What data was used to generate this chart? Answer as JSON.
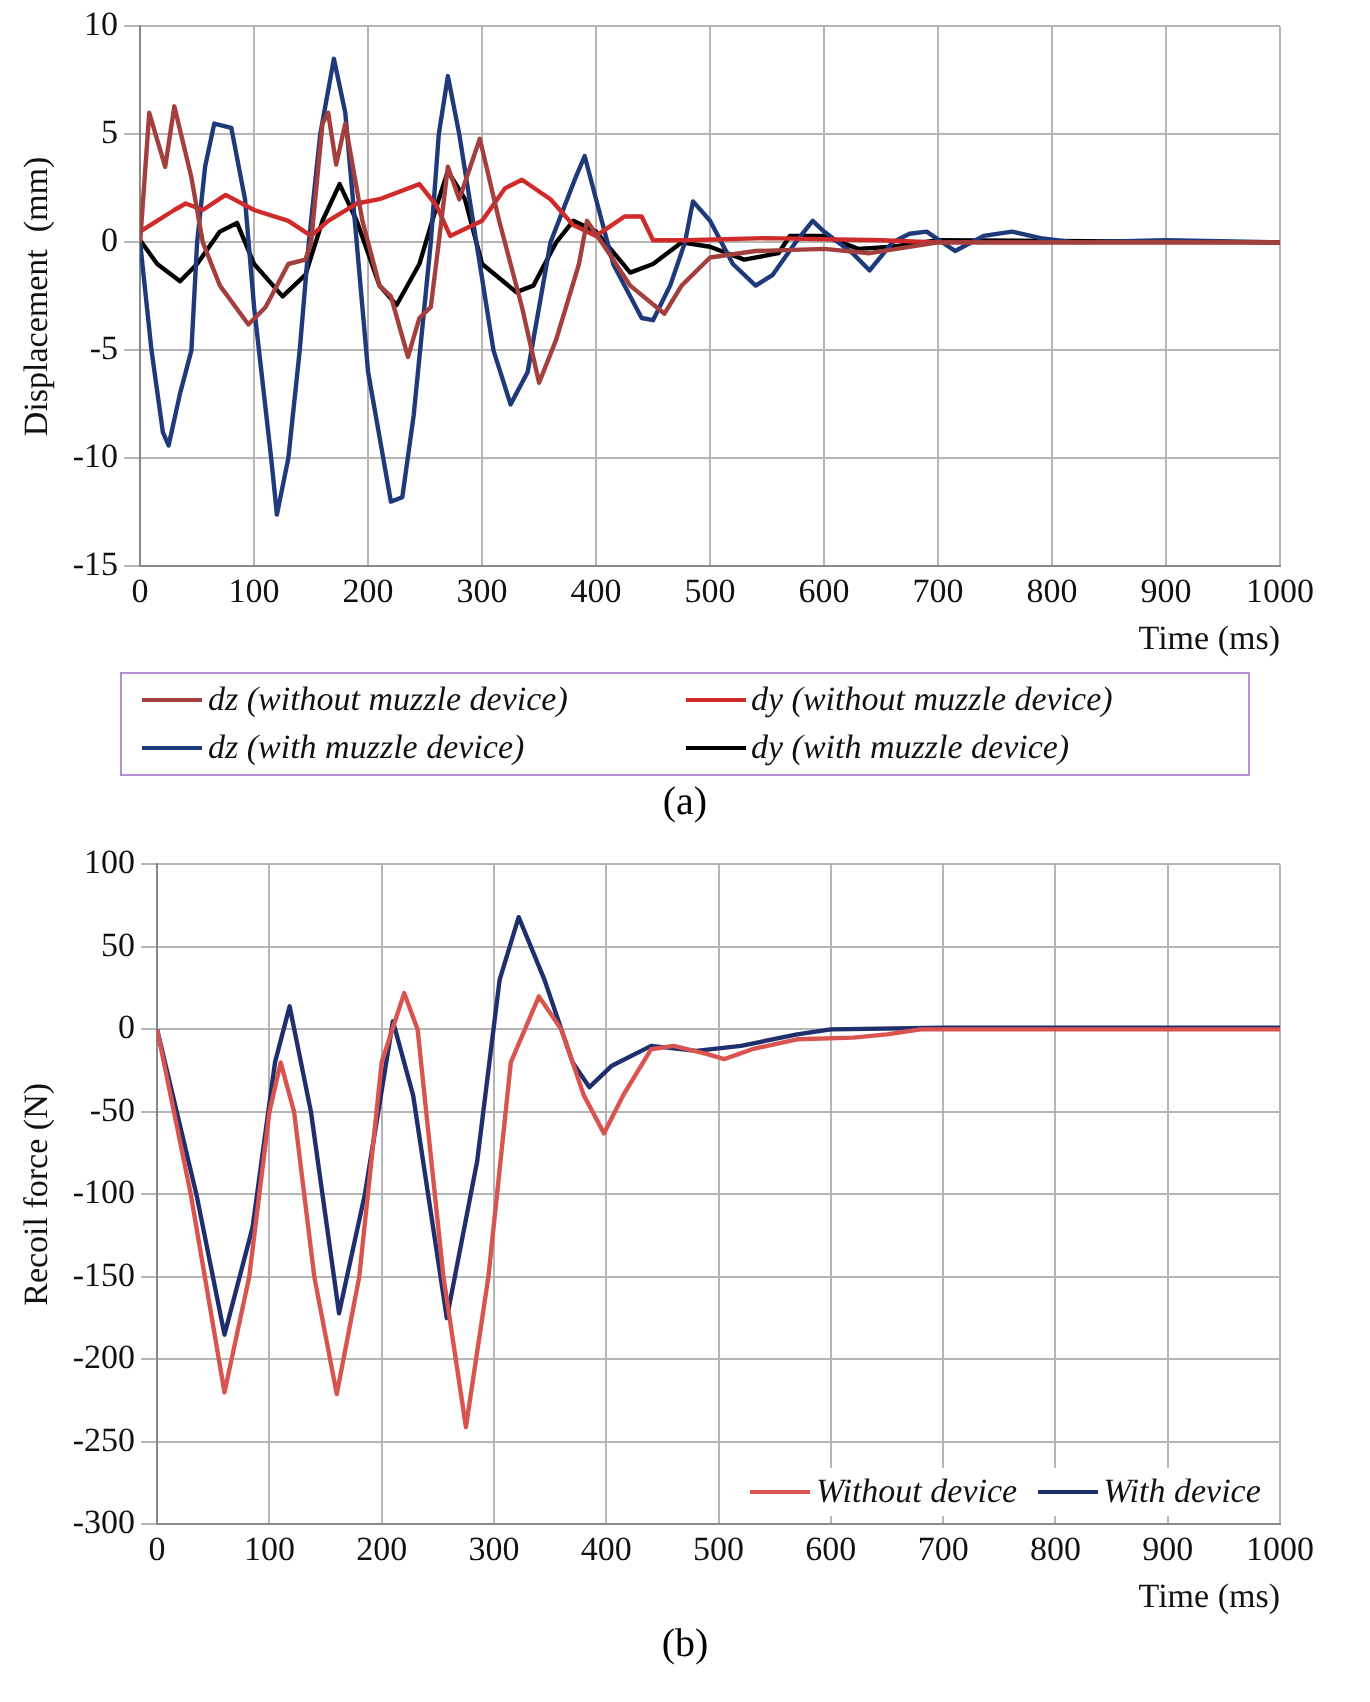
{
  "chart_data": [
    {
      "type": "line",
      "xlabel": "Time (ms)",
      "ylabel": "Displacement  (mm)",
      "xlim": [
        0,
        1000
      ],
      "xticks": [
        0,
        100,
        200,
        300,
        400,
        500,
        600,
        700,
        800,
        900,
        1000
      ],
      "ylim": [
        -15,
        10
      ],
      "yticks": [
        -15,
        -10,
        -5,
        0,
        5,
        10
      ],
      "grid": true,
      "legend": "bottom",
      "marker": "none",
      "annotations": [
        "(a)"
      ],
      "series": [
        {
          "name": "dz (without muzzle device)",
          "color": "#a33f3c",
          "x": [
            0,
            8,
            22,
            30,
            45,
            55,
            70,
            95,
            110,
            130,
            145,
            150,
            160,
            165,
            172,
            180,
            195,
            210,
            220,
            235,
            245,
            255,
            262,
            270,
            280,
            298,
            315,
            335,
            350,
            365,
            385,
            392,
            405,
            430,
            460,
            475,
            500,
            540,
            600,
            640,
            700,
            1000
          ],
          "values": [
            0,
            6,
            3.5,
            6.3,
            3,
            0,
            -2,
            -3.8,
            -3,
            -1,
            -0.8,
            0,
            5.5,
            6,
            3.6,
            5.5,
            1,
            -2,
            -2.5,
            -5.3,
            -3.5,
            -3,
            0,
            3.5,
            2,
            4.8,
            1,
            -3,
            -6.5,
            -4.5,
            -1,
            1,
            0,
            -2,
            -3.3,
            -2,
            -0.7,
            -0.4,
            -0.3,
            -0.5,
            0,
            0
          ]
        },
        {
          "name": "dy (without muzzle device)",
          "color": "#d02a2a",
          "x": [
            0,
            30,
            40,
            55,
            75,
            100,
            130,
            150,
            165,
            190,
            210,
            245,
            260,
            272,
            300,
            320,
            335,
            360,
            380,
            400,
            425,
            440,
            450,
            480,
            550,
            650,
            700,
            1000
          ],
          "values": [
            0.5,
            1.5,
            1.8,
            1.5,
            2.2,
            1.5,
            1,
            0.3,
            1,
            1.8,
            2,
            2.7,
            1.7,
            0.3,
            1,
            2.5,
            2.9,
            2,
            0.8,
            0.3,
            1.2,
            1.2,
            0.1,
            0.1,
            0.2,
            0.1,
            0,
            0
          ]
        },
        {
          "name": "dz (with muzzle device)",
          "color": "#1f3a7a",
          "x": [
            0,
            10,
            20,
            25,
            35,
            45,
            50,
            57,
            65,
            80,
            92,
            100,
            115,
            120,
            130,
            140,
            148,
            158,
            170,
            180,
            190,
            200,
            220,
            230,
            240,
            255,
            262,
            270,
            280,
            295,
            310,
            325,
            340,
            360,
            382,
            390,
            400,
            415,
            440,
            450,
            465,
            478,
            485,
            500,
            520,
            540,
            555,
            575,
            590,
            600,
            625,
            640,
            660,
            675,
            690,
            715,
            740,
            765,
            790,
            820,
            900,
            1000
          ],
          "values": [
            0,
            -5,
            -8.8,
            -9.4,
            -7,
            -5,
            0,
            3.5,
            5.5,
            5.3,
            2,
            -3,
            -10,
            -12.6,
            -10,
            -5,
            0,
            5,
            8.5,
            6,
            0,
            -6,
            -12,
            -11.8,
            -8,
            0,
            5,
            7.7,
            5,
            0,
            -5,
            -7.5,
            -6,
            0,
            3,
            4,
            2,
            -1,
            -3.5,
            -3.6,
            -2,
            0,
            1.9,
            1,
            -1,
            -2,
            -1.5,
            0,
            1,
            0.5,
            -0.5,
            -1.3,
            0,
            0.4,
            0.5,
            -0.4,
            0.3,
            0.5,
            0.2,
            0,
            0.1,
            0
          ]
        },
        {
          "name": "dy (with muzzle device)",
          "color": "#000000",
          "x": [
            0,
            15,
            35,
            50,
            70,
            85,
            100,
            125,
            145,
            160,
            175,
            190,
            210,
            225,
            245,
            262,
            270,
            285,
            300,
            330,
            345,
            365,
            380,
            400,
            430,
            450,
            475,
            500,
            530,
            560,
            570,
            600,
            630,
            660,
            700,
            1000
          ],
          "values": [
            0.1,
            -1,
            -1.8,
            -1,
            0.5,
            0.9,
            -1,
            -2.5,
            -1.5,
            1,
            2.7,
            1,
            -2,
            -2.9,
            -1,
            2,
            3.3,
            2,
            -1,
            -2.3,
            -2,
            0,
            1,
            0.5,
            -1.4,
            -1,
            0,
            -0.2,
            -0.8,
            -0.5,
            0.3,
            0.3,
            -0.3,
            -0.2,
            0.1,
            0
          ]
        }
      ]
    },
    {
      "type": "line",
      "xlabel": "Time (ms)",
      "ylabel": "Recoil force (N)",
      "xlim": [
        0,
        1000
      ],
      "xticks": [
        0,
        100,
        200,
        300,
        400,
        500,
        600,
        700,
        800,
        900,
        1000
      ],
      "ylim": [
        -300,
        100
      ],
      "yticks": [
        -300,
        -250,
        -200,
        -150,
        -100,
        -50,
        0,
        50,
        100
      ],
      "grid": true,
      "legend": "bottom right",
      "marker": "none",
      "annotations": [
        "(b)"
      ],
      "series": [
        {
          "name": "Without device",
          "color": "#d9534f",
          "x": [
            0,
            30,
            60,
            82,
            100,
            110,
            122,
            140,
            160,
            180,
            200,
            220,
            232,
            255,
            275,
            295,
            315,
            340,
            360,
            380,
            398,
            415,
            440,
            460,
            490,
            505,
            530,
            570,
            620,
            650,
            680,
            1000
          ],
          "values": [
            0,
            -100,
            -220,
            -150,
            -50,
            -20,
            -50,
            -150,
            -221,
            -150,
            -20,
            22,
            0,
            -150,
            -241,
            -150,
            -20,
            20,
            0,
            -40,
            -63,
            -40,
            -12,
            -10,
            -15,
            -18,
            -12,
            -6,
            -5,
            -3,
            0,
            0
          ]
        },
        {
          "name": "With device",
          "color": "#1f2f6e",
          "x": [
            0,
            35,
            60,
            85,
            105,
            118,
            137,
            162,
            185,
            210,
            228,
            258,
            285,
            305,
            322,
            345,
            370,
            385,
            405,
            440,
            480,
            520,
            570,
            600,
            700,
            1000
          ],
          "values": [
            0,
            -100,
            -185,
            -120,
            -20,
            14,
            -50,
            -172,
            -100,
            5,
            -40,
            -175,
            -80,
            30,
            68,
            30,
            -20,
            -35,
            -22,
            -10,
            -13,
            -10,
            -3,
            0,
            1,
            1
          ]
        }
      ]
    }
  ]
}
